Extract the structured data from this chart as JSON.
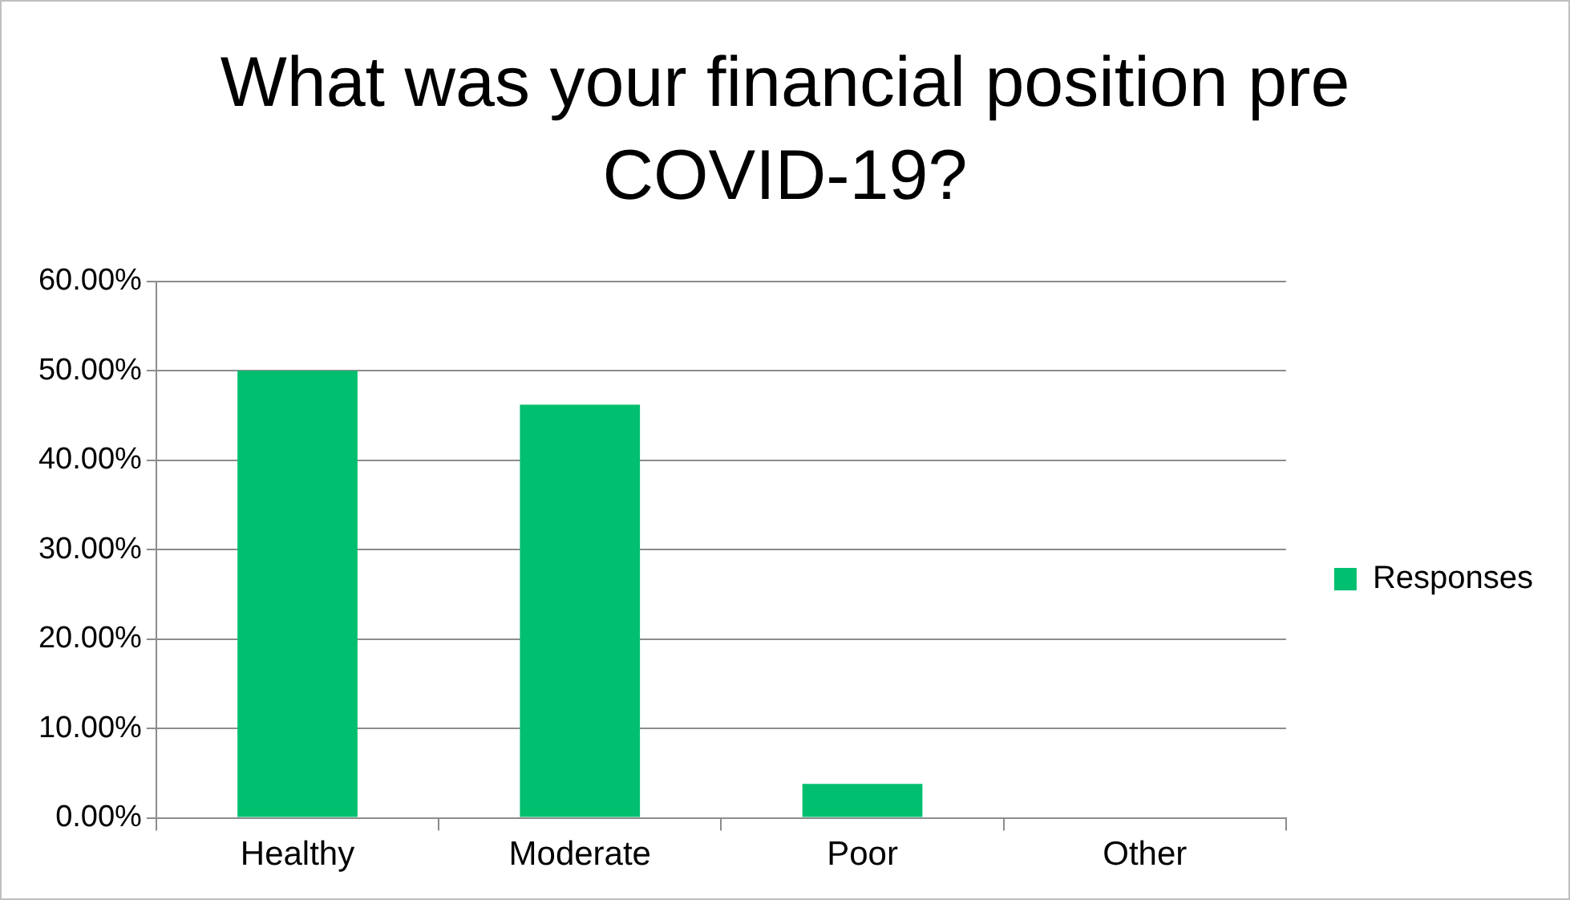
{
  "chart_data": {
    "type": "bar",
    "title": "What was your financial position pre COVID-19?",
    "categories": [
      "Healthy",
      "Moderate",
      "Poor",
      "Other"
    ],
    "series": [
      {
        "name": "Responses",
        "color": "#00bf6f",
        "values": [
          50,
          46.2,
          3.8,
          0
        ]
      }
    ],
    "ylim": [
      0,
      60
    ],
    "yticks": [
      {
        "value": 0,
        "label": "0.00%"
      },
      {
        "value": 10,
        "label": "10.00%"
      },
      {
        "value": 20,
        "label": "20.00%"
      },
      {
        "value": 30,
        "label": "30.00%"
      },
      {
        "value": 40,
        "label": "40.00%"
      },
      {
        "value": 50,
        "label": "50.00%"
      },
      {
        "value": 60,
        "label": "60.00%"
      }
    ],
    "grid": "y",
    "legend": "right"
  }
}
